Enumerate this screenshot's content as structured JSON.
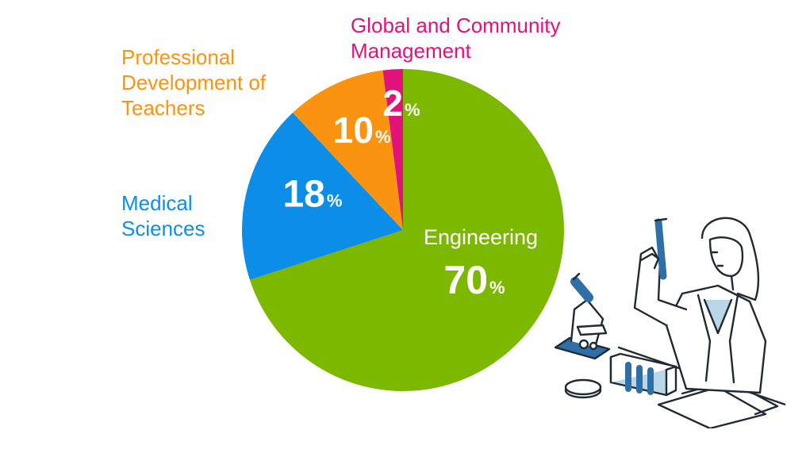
{
  "chart_data": {
    "type": "pie",
    "title": "",
    "slices": [
      {
        "label": "Engineering",
        "value": 70,
        "display": "70",
        "color": "#7db800"
      },
      {
        "label": "Medical Sciences",
        "value": 18,
        "display": "18",
        "color": "#0c8ee8"
      },
      {
        "label": "Professional Development of Teachers",
        "value": 10,
        "display": "10",
        "color": "#fa9410"
      },
      {
        "label": "Global and Community Management",
        "value": 2,
        "display": "2",
        "color": "#e0137a"
      }
    ],
    "percent_symbol": "%"
  },
  "labels": {
    "engineering": "Engineering",
    "medical": [
      "Medical",
      "Sciences"
    ],
    "professional": [
      "Professional",
      "Development of",
      "Teachers"
    ],
    "global": [
      "Global and Community",
      "Management"
    ]
  },
  "colors": {
    "engineering": "#7db800",
    "medical": "#0c8ee8",
    "professional": "#fa9410",
    "global": "#e0137a",
    "illustration_line": "#1f2a33",
    "illustration_blue": "#2f6fa8",
    "illustration_lightblue": "#b9d7e6"
  },
  "illustration": {
    "icon": "scientist-with-microscope-and-test-tubes-icon"
  }
}
